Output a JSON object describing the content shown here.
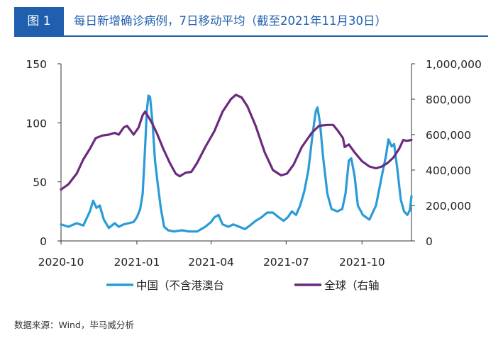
{
  "header": {
    "badge": "图 1",
    "title": "每日新增确诊病例，7日移动平均（截至2021年11月30日）"
  },
  "source": "数据来源：Wind，毕马威分析",
  "colors": {
    "accent": "#1f5fae",
    "china": "#2a9bd8",
    "global": "#6b2a7d"
  },
  "chart_data": {
    "type": "line",
    "title": "每日新增确诊病例，7日移动平均（截至2021年11月30日）",
    "x_ticks": [
      "2020-10",
      "2021-01",
      "2021-04",
      "2021-07",
      "2021-10"
    ],
    "y_left": {
      "range": [
        0,
        150
      ],
      "ticks": [
        "0",
        "50",
        "100",
        "150"
      ]
    },
    "y_right": {
      "range": [
        0,
        1000000
      ],
      "ticks": [
        "0",
        "200,000",
        "400,000",
        "600,000",
        "800,000",
        "1,000,000"
      ]
    },
    "legend_position": "bottom",
    "grid": false,
    "series": [
      {
        "name": "中国（不含港澳台",
        "axis": "left",
        "color": "#2a9bd8",
        "points": [
          [
            "2020-10-01",
            14
          ],
          [
            "2020-10-10",
            12
          ],
          [
            "2020-10-20",
            15
          ],
          [
            "2020-10-28",
            13
          ],
          [
            "2020-11-05",
            25
          ],
          [
            "2020-11-09",
            34
          ],
          [
            "2020-11-13",
            28
          ],
          [
            "2020-11-17",
            30
          ],
          [
            "2020-11-22",
            18
          ],
          [
            "2020-11-28",
            11
          ],
          [
            "2020-12-05",
            15
          ],
          [
            "2020-12-10",
            12
          ],
          [
            "2020-12-16",
            14
          ],
          [
            "2020-12-22",
            15
          ],
          [
            "2020-12-28",
            16
          ],
          [
            "2021-01-01",
            20
          ],
          [
            "2021-01-05",
            27
          ],
          [
            "2021-01-08",
            40
          ],
          [
            "2021-01-11",
            80
          ],
          [
            "2021-01-13",
            110
          ],
          [
            "2021-01-15",
            123
          ],
          [
            "2021-01-17",
            122
          ],
          [
            "2021-01-20",
            100
          ],
          [
            "2021-01-23",
            68
          ],
          [
            "2021-01-26",
            50
          ],
          [
            "2021-01-30",
            28
          ],
          [
            "2021-02-03",
            12
          ],
          [
            "2021-02-08",
            9
          ],
          [
            "2021-02-15",
            8
          ],
          [
            "2021-02-25",
            9
          ],
          [
            "2021-03-05",
            8
          ],
          [
            "2021-03-15",
            8
          ],
          [
            "2021-03-25",
            12
          ],
          [
            "2021-04-01",
            16
          ],
          [
            "2021-04-05",
            20
          ],
          [
            "2021-04-10",
            22
          ],
          [
            "2021-04-15",
            14
          ],
          [
            "2021-04-22",
            12
          ],
          [
            "2021-04-28",
            14
          ],
          [
            "2021-05-05",
            12
          ],
          [
            "2021-05-12",
            10
          ],
          [
            "2021-05-18",
            13
          ],
          [
            "2021-05-25",
            17
          ],
          [
            "2021-06-01",
            20
          ],
          [
            "2021-06-08",
            24
          ],
          [
            "2021-06-15",
            24
          ],
          [
            "2021-06-22",
            20
          ],
          [
            "2021-06-28",
            17
          ],
          [
            "2021-07-03",
            20
          ],
          [
            "2021-07-08",
            25
          ],
          [
            "2021-07-13",
            22
          ],
          [
            "2021-07-18",
            30
          ],
          [
            "2021-07-23",
            42
          ],
          [
            "2021-07-28",
            60
          ],
          [
            "2021-08-02",
            90
          ],
          [
            "2021-08-06",
            110
          ],
          [
            "2021-08-08",
            113
          ],
          [
            "2021-08-11",
            100
          ],
          [
            "2021-08-15",
            70
          ],
          [
            "2021-08-20",
            40
          ],
          [
            "2021-08-25",
            27
          ],
          [
            "2021-09-01",
            25
          ],
          [
            "2021-09-07",
            27
          ],
          [
            "2021-09-11",
            40
          ],
          [
            "2021-09-15",
            68
          ],
          [
            "2021-09-18",
            70
          ],
          [
            "2021-09-22",
            55
          ],
          [
            "2021-09-26",
            30
          ],
          [
            "2021-10-02",
            22
          ],
          [
            "2021-10-10",
            18
          ],
          [
            "2021-10-18",
            30
          ],
          [
            "2021-10-25",
            55
          ],
          [
            "2021-10-30",
            72
          ],
          [
            "2021-11-02",
            86
          ],
          [
            "2021-11-06",
            80
          ],
          [
            "2021-11-09",
            82
          ],
          [
            "2021-11-13",
            60
          ],
          [
            "2021-11-17",
            35
          ],
          [
            "2021-11-21",
            25
          ],
          [
            "2021-11-25",
            22
          ],
          [
            "2021-11-28",
            26
          ],
          [
            "2021-11-30",
            38
          ]
        ]
      },
      {
        "name": "全球（右轴",
        "axis": "right",
        "color": "#6b2a7d",
        "points": [
          [
            "2020-10-01",
            290000
          ],
          [
            "2020-10-10",
            320000
          ],
          [
            "2020-10-20",
            380000
          ],
          [
            "2020-10-28",
            460000
          ],
          [
            "2020-11-05",
            520000
          ],
          [
            "2020-11-12",
            580000
          ],
          [
            "2020-11-20",
            595000
          ],
          [
            "2020-11-28",
            600000
          ],
          [
            "2020-12-05",
            610000
          ],
          [
            "2020-12-10",
            600000
          ],
          [
            "2020-12-16",
            640000
          ],
          [
            "2020-12-20",
            650000
          ],
          [
            "2020-12-25",
            620000
          ],
          [
            "2020-12-28",
            600000
          ],
          [
            "2021-01-03",
            640000
          ],
          [
            "2021-01-08",
            710000
          ],
          [
            "2021-01-11",
            730000
          ],
          [
            "2021-01-15",
            700000
          ],
          [
            "2021-01-20",
            660000
          ],
          [
            "2021-01-26",
            600000
          ],
          [
            "2021-02-02",
            520000
          ],
          [
            "2021-02-10",
            440000
          ],
          [
            "2021-02-17",
            380000
          ],
          [
            "2021-02-22",
            365000
          ],
          [
            "2021-03-01",
            385000
          ],
          [
            "2021-03-08",
            390000
          ],
          [
            "2021-03-15",
            440000
          ],
          [
            "2021-03-25",
            530000
          ],
          [
            "2021-04-05",
            620000
          ],
          [
            "2021-04-15",
            730000
          ],
          [
            "2021-04-25",
            800000
          ],
          [
            "2021-05-01",
            825000
          ],
          [
            "2021-05-08",
            810000
          ],
          [
            "2021-05-15",
            760000
          ],
          [
            "2021-05-25",
            650000
          ],
          [
            "2021-06-05",
            500000
          ],
          [
            "2021-06-15",
            400000
          ],
          [
            "2021-06-25",
            370000
          ],
          [
            "2021-07-02",
            380000
          ],
          [
            "2021-07-10",
            430000
          ],
          [
            "2021-07-20",
            530000
          ],
          [
            "2021-08-01",
            610000
          ],
          [
            "2021-08-10",
            650000
          ],
          [
            "2021-08-20",
            655000
          ],
          [
            "2021-08-27",
            655000
          ],
          [
            "2021-09-02",
            620000
          ],
          [
            "2021-09-08",
            580000
          ],
          [
            "2021-09-10",
            530000
          ],
          [
            "2021-09-15",
            545000
          ],
          [
            "2021-09-22",
            500000
          ],
          [
            "2021-10-01",
            450000
          ],
          [
            "2021-10-10",
            420000
          ],
          [
            "2021-10-18",
            410000
          ],
          [
            "2021-10-25",
            420000
          ],
          [
            "2021-11-01",
            440000
          ],
          [
            "2021-11-08",
            470000
          ],
          [
            "2021-11-15",
            520000
          ],
          [
            "2021-11-20",
            570000
          ],
          [
            "2021-11-24",
            565000
          ],
          [
            "2021-11-30",
            570000
          ]
        ]
      }
    ]
  }
}
